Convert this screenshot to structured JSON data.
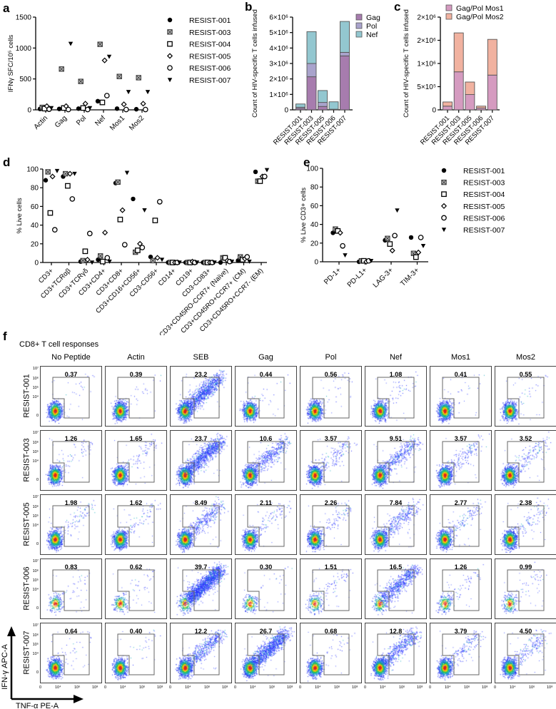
{
  "patients": [
    "RESIST-001",
    "RESIST-003",
    "RESIST-004",
    "RESIST-005",
    "RESIST-006",
    "RESIST-007"
  ],
  "markers": [
    "filled-circle",
    "crossed-square",
    "open-square",
    "open-diamond",
    "open-circle",
    "filled-triangle-down"
  ],
  "panel_labels": {
    "a": "a",
    "b": "b",
    "c": "c",
    "d": "d",
    "e": "e",
    "f": "f"
  },
  "chart_data": [
    {
      "id": "a",
      "type": "scatter",
      "ylabel": "IFNγ SFC/10⁵ cells",
      "categories": [
        "Actin",
        "Gag",
        "Pol",
        "Nef",
        "Mos1",
        "Mos2"
      ],
      "ylim": [
        0,
        1500
      ],
      "yticks": [
        "0",
        "500",
        "1000",
        "1500"
      ],
      "ytick_values": [
        0,
        500,
        1000,
        1500
      ],
      "legend": "right",
      "series": [
        {
          "name": "RESIST-001",
          "values": [
            15,
            15,
            20,
            140,
            20,
            10
          ]
        },
        {
          "name": "RESIST-003",
          "values": [
            40,
            660,
            460,
            1060,
            540,
            520
          ]
        },
        {
          "name": "RESIST-004",
          "values": [
            20,
            30,
            30,
            120,
            null,
            null
          ]
        },
        {
          "name": "RESIST-005",
          "values": [
            60,
            60,
            100,
            800,
            90,
            100
          ]
        },
        {
          "name": "RESIST-006",
          "values": [
            10,
            5,
            5,
            230,
            5,
            5
          ]
        },
        {
          "name": "RESIST-007",
          "values": [
            30,
            1070,
            30,
            860,
            290,
            290
          ]
        }
      ]
    },
    {
      "id": "b",
      "type": "bar",
      "stacked": true,
      "ylabel": "Count of HIV-specific T cells infused",
      "categories": [
        "RESIST-001",
        "RESIST-003",
        "RESIST-005",
        "RESIST-006",
        "RESIST-007"
      ],
      "ylim": [
        0,
        6000000
      ],
      "yticks": [
        "0",
        "1×10⁶",
        "2×10⁶",
        "3×10⁶",
        "4×10⁶",
        "5×10⁶",
        "6×10⁶"
      ],
      "ytick_values": [
        0,
        1000000,
        2000000,
        3000000,
        4000000,
        5000000,
        6000000
      ],
      "legend": "top-right",
      "series": [
        {
          "name": "Gag",
          "color": "#a77cae",
          "values": [
            90000,
            2140000,
            220000,
            20000,
            3490000
          ]
        },
        {
          "name": "Pol",
          "color": "#a9a3cc",
          "values": [
            80000,
            860000,
            260000,
            20000,
            230000
          ]
        },
        {
          "name": "Nef",
          "color": "#93c7d0",
          "values": [
            210000,
            2060000,
            770000,
            480000,
            2000000
          ]
        }
      ]
    },
    {
      "id": "c",
      "type": "bar",
      "stacked": true,
      "ylabel": "Count of HIV-specific T cells infused",
      "categories": [
        "RESIST-001",
        "RESIST-003",
        "RESIST-005",
        "RESIST-006",
        "RESIST-007"
      ],
      "ylim": [
        0,
        2000000
      ],
      "yticks": [
        "0",
        "5×10⁵",
        "1×10⁶",
        "2×10⁶",
        "2×10⁶"
      ],
      "ytick_values": [
        0,
        500000,
        1000000,
        1500000,
        2000000
      ],
      "legend": "top",
      "series": [
        {
          "name": "Gag/Pol Mos1",
          "color": "#d59bc0",
          "values": [
            80000,
            820000,
            330000,
            40000,
            750000
          ]
        },
        {
          "name": "Gag/Pol Mos2",
          "color": "#f1b2a0",
          "values": [
            90000,
            840000,
            270000,
            40000,
            770000
          ]
        }
      ]
    },
    {
      "id": "d",
      "type": "scatter",
      "ylabel": "% Live cells",
      "categories": [
        "CD3+",
        "CD3+TCRαβ",
        "CD3+TCRγδ",
        "CD3+CD4+",
        "CD3+CD8+",
        "CD3+CD16+CD56+",
        "CD3-CD56+",
        "CD14+",
        "CD19+",
        "CD3-CD83+",
        "CD3+CD45RO-CCR7+ (Naïve)",
        "CD3+CD45RO+CCR7+ (CM)",
        "CD3+CD45RO+CCR7- (EM)"
      ],
      "ylim": [
        0,
        100
      ],
      "yticks": [
        "0",
        "20",
        "40",
        "60",
        "80",
        "100"
      ],
      "ytick_values": [
        0,
        20,
        40,
        60,
        80,
        100
      ],
      "series": [
        {
          "name": "RESIST-001",
          "values": [
            88,
            92,
            1,
            3,
            85,
            68,
            6,
            0,
            0,
            0,
            0,
            2,
            97
          ]
        },
        {
          "name": "RESIST-003",
          "values": [
            97,
            95,
            2,
            7,
            86,
            11,
            2,
            0,
            0,
            0,
            5,
            6,
            87
          ]
        },
        {
          "name": "RESIST-004",
          "values": [
            53,
            82,
            12,
            1,
            46,
            13,
            45,
            0,
            0,
            0,
            5,
            3,
            87
          ]
        },
        {
          "name": "RESIST-005",
          "values": [
            92,
            95,
            3,
            32,
            56,
            20,
            5,
            0,
            1,
            0,
            2,
            4,
            92
          ]
        },
        {
          "name": "RESIST-006",
          "values": [
            35,
            68,
            31,
            5,
            19,
            16,
            65,
            0,
            0,
            0,
            1,
            6,
            92
          ]
        },
        {
          "name": "RESIST-007",
          "values": [
            98,
            95,
            0,
            1,
            96,
            56,
            3,
            0,
            0,
            0,
            1,
            1,
            99
          ]
        }
      ]
    },
    {
      "id": "e",
      "type": "scatter",
      "ylabel": "% Live CD3+ cells",
      "categories": [
        "PD-1+",
        "PD-L1+",
        "LAG-3+",
        "TIM-3+"
      ],
      "ylim": [
        0,
        100
      ],
      "yticks": [
        "0",
        "20",
        "40",
        "60",
        "80",
        "100"
      ],
      "ytick_values": [
        0,
        20,
        40,
        60,
        80,
        100
      ],
      "legend": "right",
      "series": [
        {
          "name": "RESIST-001",
          "values": [
            31,
            0,
            23,
            26
          ]
        },
        {
          "name": "RESIST-003",
          "values": [
            35,
            1,
            25,
            9
          ]
        },
        {
          "name": "RESIST-004",
          "values": [
            33,
            1,
            19,
            5
          ]
        },
        {
          "name": "RESIST-005",
          "values": [
            31,
            0,
            12,
            10
          ]
        },
        {
          "name": "RESIST-006",
          "values": [
            17,
            1,
            28,
            26
          ]
        },
        {
          "name": "RESIST-007",
          "values": [
            7,
            1,
            55,
            17
          ]
        }
      ]
    },
    {
      "id": "f",
      "type": "table",
      "title": "CD8+ T cell responses",
      "columns": [
        "No Peptide",
        "Actin",
        "SEB",
        "Gag",
        "Pol",
        "Nef",
        "Mos1",
        "Mos2"
      ],
      "rows": [
        "RESIST-001",
        "RESIST-003",
        "RESIST-005",
        "RESIST-006",
        "RESIST-007"
      ],
      "values": [
        [
          "0.37",
          "0.39",
          "23.2",
          "0.44",
          "0.56",
          "1.08",
          "0.41",
          "0.55"
        ],
        [
          "1.26",
          "1.65",
          "23.7",
          "10.6",
          "3.57",
          "9.51",
          "3.57",
          "3.52"
        ],
        [
          "1.98",
          "1.62",
          "8.49",
          "2.11",
          "2.26",
          "7.84",
          "2.77",
          "2.38"
        ],
        [
          "0.83",
          "0.62",
          "39.7",
          "0.30",
          "1.51",
          "16.5",
          "1.26",
          "0.99"
        ],
        [
          "0.64",
          "0.40",
          "12.2",
          "26.7",
          "0.68",
          "12.8",
          "3.79",
          "4.50"
        ]
      ],
      "yticks": [
        "0",
        "10⁴",
        "10⁵",
        "10⁶",
        "10⁷"
      ],
      "xticks": [
        "0",
        "10⁴",
        "10⁶",
        "10⁸"
      ],
      "ylabel": "IFN-γ APC-A",
      "xlabel": "TNF-α PE-A"
    }
  ]
}
